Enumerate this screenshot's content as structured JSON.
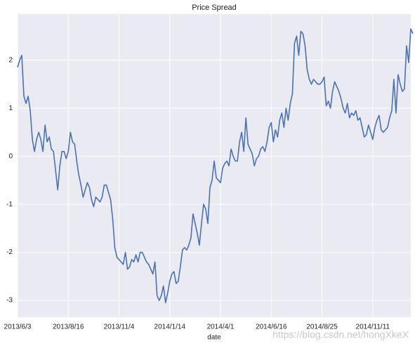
{
  "chart_data": {
    "type": "line",
    "title": "Price Spread",
    "xlabel": "date",
    "watermark": "https://blog.csdn.net/hongXkeX",
    "color": "#4c72b0",
    "grid": true,
    "xlim": [
      0,
      186
    ],
    "xticks": [
      {
        "value": 0,
        "label": "2013/6/3"
      },
      {
        "value": 24,
        "label": "2013/8/16"
      },
      {
        "value": 48,
        "label": "2013/11/4"
      },
      {
        "value": 72,
        "label": "2014/1/14"
      },
      {
        "value": 96,
        "label": "2014/4/1"
      },
      {
        "value": 120,
        "label": "2014/6/16"
      },
      {
        "value": 144,
        "label": "2014/8/25"
      },
      {
        "value": 168,
        "label": "2014/11/11"
      }
    ],
    "ylim": [
      -3.35,
      2.96
    ],
    "yticks": [
      -3,
      -2,
      -1,
      0,
      1,
      2
    ],
    "values": [
      1.85,
      2.0,
      2.1,
      1.25,
      1.1,
      1.25,
      0.95,
      0.35,
      0.1,
      0.35,
      0.5,
      0.35,
      0.1,
      0.65,
      0.3,
      0.4,
      0.15,
      0.1,
      -0.3,
      -0.7,
      -0.2,
      0.1,
      0.1,
      -0.05,
      0.1,
      0.5,
      0.3,
      0.25,
      -0.1,
      -0.4,
      -0.6,
      -0.85,
      -0.7,
      -0.55,
      -0.65,
      -0.9,
      -1.05,
      -0.85,
      -0.9,
      -0.95,
      -0.85,
      -0.6,
      -0.6,
      -0.75,
      -0.9,
      -1.3,
      -1.9,
      -2.1,
      -2.15,
      -2.2,
      -2.25,
      -2.0,
      -2.35,
      -2.3,
      -2.15,
      -2.2,
      -2.05,
      -2.2,
      -2.0,
      -2.0,
      -2.1,
      -2.2,
      -2.25,
      -2.35,
      -2.45,
      -2.2,
      -2.9,
      -3.0,
      -2.9,
      -2.7,
      -3.05,
      -2.85,
      -2.6,
      -2.45,
      -2.4,
      -2.65,
      -2.6,
      -2.3,
      -1.95,
      -1.9,
      -1.95,
      -1.85,
      -1.7,
      -1.2,
      -1.4,
      -1.6,
      -1.85,
      -1.4,
      -1.0,
      -1.1,
      -1.4,
      -0.65,
      -0.5,
      -0.1,
      -0.45,
      -0.5,
      -0.55,
      -0.25,
      -0.15,
      -0.1,
      -0.2,
      0.15,
      0.0,
      -0.1,
      -0.1,
      0.3,
      0.5,
      0.1,
      0.8,
      0.25,
      0.15,
      0.05,
      -0.2,
      -0.05,
      0.0,
      0.15,
      0.2,
      0.1,
      0.3,
      0.6,
      0.7,
      0.3,
      0.55,
      0.4,
      0.75,
      0.9,
      0.6,
      1.0,
      0.75,
      1.1,
      1.3,
      2.35,
      2.5,
      2.1,
      2.6,
      2.55,
      2.3,
      1.8,
      1.6,
      1.5,
      1.6,
      1.55,
      1.5,
      1.5,
      1.55,
      1.65,
      1.05,
      1.15,
      1.0,
      1.35,
      1.55,
      1.45,
      1.35,
      1.2,
      1.0,
      0.9,
      1.1,
      0.8,
      0.9,
      0.85,
      0.95,
      0.75,
      0.8,
      0.6,
      0.4,
      0.45,
      0.65,
      0.5,
      0.35,
      0.6,
      0.75,
      0.85,
      0.55,
      0.5,
      0.55,
      0.6,
      0.8,
      0.95,
      1.6,
      0.9,
      1.7,
      1.5,
      1.35,
      1.4,
      2.3,
      1.95,
      2.65,
      2.55
    ]
  }
}
